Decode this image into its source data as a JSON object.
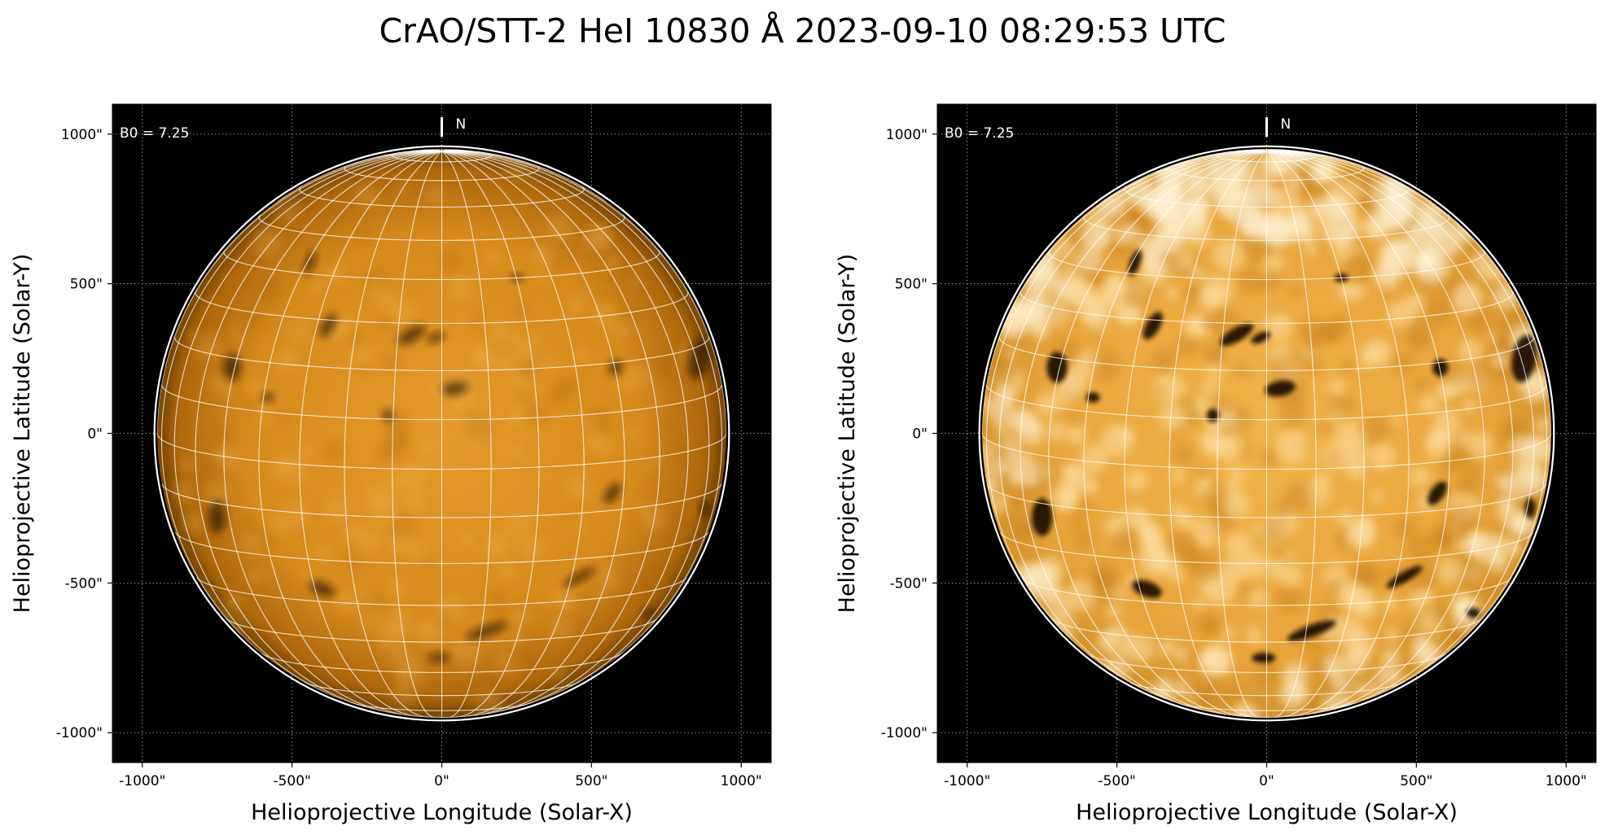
{
  "title": "CrAO/STT-2 HeI 10830 Å 2023-09-10 08:29:53 UTC",
  "panels": [
    {
      "id": "panel-original",
      "xlabel": "Helioprojective Longitude (Solar-X)",
      "ylabel": "Helioprojective Latitude (Solar-Y)",
      "b0_label": "B0 = 7.25",
      "north_label": "N",
      "contrast": "normal",
      "x_ticks": [
        "-1000\"",
        "-500\"",
        "0\"",
        "500\"",
        "1000\""
      ],
      "y_ticks": [
        "1000\"",
        "500\"",
        "0\"",
        "-500\"",
        "-1000\""
      ]
    },
    {
      "id": "panel-enhanced",
      "xlabel": "Helioprojective Longitude (Solar-X)",
      "ylabel": "Helioprojective Latitude (Solar-Y)",
      "b0_label": "B0 = 7.25",
      "north_label": "N",
      "contrast": "enhanced",
      "x_ticks": [
        "-1000\"",
        "-500\"",
        "0\"",
        "500\"",
        "1000\""
      ],
      "y_ticks": [
        "1000\"",
        "500\"",
        "0\"",
        "-500\"",
        "-1000\""
      ]
    }
  ],
  "image": {
    "x_range_arcsec": [
      -1100,
      1100
    ],
    "y_range_arcsec": [
      -1100,
      1100
    ],
    "tick_values_arcsec": [
      -1000,
      -500,
      0,
      500,
      1000
    ],
    "solar_radius_arcsec": 950,
    "b0_deg": 7.25,
    "grid_spacing_deg": 10,
    "colors": {
      "background": "#000000",
      "disk_center": "#e49a2a",
      "disk_limb": "#8c5205",
      "enhanced_center": "#f2b44a",
      "enhanced_light": "#fde2a8",
      "grid": "#ffffff",
      "filament": "#1a0d00"
    },
    "filaments": [
      {
        "x": 45,
        "y": 150,
        "w": 90,
        "h": 45,
        "rot": -10
      },
      {
        "x": -100,
        "y": 330,
        "w": 110,
        "h": 40,
        "rot": -30
      },
      {
        "x": -20,
        "y": 320,
        "w": 60,
        "h": 28,
        "rot": -25
      },
      {
        "x": -380,
        "y": 360,
        "w": 40,
        "h": 90,
        "rot": 30
      },
      {
        "x": -440,
        "y": 570,
        "w": 30,
        "h": 80,
        "rot": 20
      },
      {
        "x": -700,
        "y": 220,
        "w": 60,
        "h": 90,
        "rot": 0
      },
      {
        "x": 860,
        "y": 250,
        "w": 70,
        "h": 140,
        "rot": 10
      },
      {
        "x": 580,
        "y": 220,
        "w": 45,
        "h": 50,
        "rot": 0
      },
      {
        "x": 570,
        "y": -200,
        "w": 40,
        "h": 80,
        "rot": 35
      },
      {
        "x": 460,
        "y": -480,
        "w": 120,
        "h": 30,
        "rot": -30
      },
      {
        "x": 150,
        "y": -660,
        "w": 150,
        "h": 35,
        "rot": -20
      },
      {
        "x": -400,
        "y": -520,
        "w": 90,
        "h": 45,
        "rot": 20
      },
      {
        "x": -10,
        "y": -750,
        "w": 70,
        "h": 30,
        "rot": 0
      },
      {
        "x": -750,
        "y": -280,
        "w": 60,
        "h": 110,
        "rot": 0
      },
      {
        "x": 250,
        "y": 520,
        "w": 40,
        "h": 25,
        "rot": 0
      },
      {
        "x": -180,
        "y": 60,
        "w": 35,
        "h": 40,
        "rot": 0
      },
      {
        "x": -580,
        "y": 120,
        "w": 40,
        "h": 30,
        "rot": 0
      },
      {
        "x": 880,
        "y": -250,
        "w": 30,
        "h": 60,
        "rot": 0
      },
      {
        "x": 690,
        "y": -600,
        "w": 40,
        "h": 30,
        "rot": 0
      }
    ]
  }
}
